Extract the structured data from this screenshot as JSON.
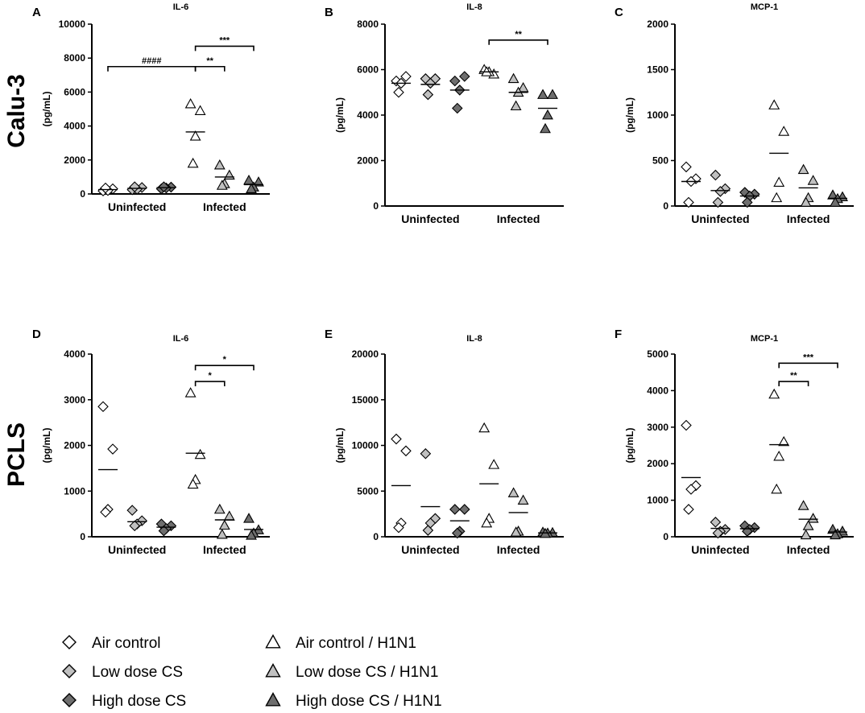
{
  "row_labels": [
    "Calu-3",
    "PCLS"
  ],
  "legend": [
    {
      "label": "Air control",
      "marker": "diamond",
      "fill": "#ffffff"
    },
    {
      "label": "Low dose CS",
      "marker": "diamond",
      "fill": "#c0c0c0"
    },
    {
      "label": "High dose CS",
      "marker": "diamond",
      "fill": "#6e6e6e"
    },
    {
      "label": "Air control / H1N1",
      "marker": "triangle",
      "fill": "#ffffff"
    },
    {
      "label": "Low dose CS / H1N1",
      "marker": "triangle",
      "fill": "#c0c0c0"
    },
    {
      "label": "High dose CS / H1N1",
      "marker": "triangle",
      "fill": "#6e6e6e"
    }
  ],
  "chart_data": [
    {
      "panel": "A",
      "type": "scatter",
      "title": "IL-6",
      "ylabel": "(pg/mL)",
      "ylim": [
        0,
        10000
      ],
      "yticks": [
        "0",
        "2000",
        "4000",
        "6000",
        "8000",
        "10000"
      ],
      "groups": [
        "Uninfected",
        "Infected"
      ],
      "series": [
        {
          "name": "Air control",
          "values": [
            180,
            300,
            200,
            350
          ],
          "mean": 260
        },
        {
          "name": "Low dose CS",
          "values": [
            250,
            380,
            280,
            420
          ],
          "mean": 330
        },
        {
          "name": "High dose CS",
          "values": [
            300,
            400,
            350,
            420
          ],
          "mean": 370
        },
        {
          "name": "Air control / H1N1",
          "values": [
            5300,
            4900,
            3400,
            1800
          ],
          "mean": 3650
        },
        {
          "name": "Low dose CS / H1N1",
          "values": [
            1700,
            1100,
            600,
            500
          ],
          "mean": 1000
        },
        {
          "name": "High dose CS / H1N1",
          "values": [
            800,
            700,
            400,
            300
          ],
          "mean": 550
        }
      ],
      "annotations": [
        {
          "from": 0,
          "to": 3,
          "y": 7500,
          "text": "####"
        },
        {
          "from": 3,
          "to": 4,
          "y": 7500,
          "text": "**"
        },
        {
          "from": 3,
          "to": 5,
          "y": 8700,
          "text": "***"
        }
      ]
    },
    {
      "panel": "B",
      "type": "scatter",
      "title": "IL-8",
      "ylabel": "(pg/mL)",
      "ylim": [
        0,
        8000
      ],
      "yticks": [
        "0",
        "2000",
        "4000",
        "6000",
        "8000"
      ],
      "groups": [
        "Uninfected",
        "Infected"
      ],
      "series": [
        {
          "name": "Air control",
          "values": [
            5500,
            5700,
            5400,
            5000
          ],
          "mean": 5400
        },
        {
          "name": "Low dose CS",
          "values": [
            5600,
            5600,
            5400,
            4900
          ],
          "mean": 5350
        },
        {
          "name": "High dose CS",
          "values": [
            5500,
            5700,
            5100,
            4300
          ],
          "mean": 5100
        },
        {
          "name": "Air control / H1N1",
          "values": [
            6000,
            5800,
            5900,
            5900
          ],
          "mean": 5900
        },
        {
          "name": "Low dose CS / H1N1",
          "values": [
            5600,
            5200,
            5000,
            4400
          ],
          "mean": 5000
        },
        {
          "name": "High dose CS / H1N1",
          "values": [
            4900,
            4900,
            4000,
            3400
          ],
          "mean": 4300
        }
      ],
      "annotations": [
        {
          "from": 3,
          "to": 5,
          "y": 7300,
          "text": "**"
        }
      ]
    },
    {
      "panel": "C",
      "type": "scatter",
      "title": "MCP-1",
      "ylabel": "(pg/mL)",
      "ylim": [
        0,
        2000
      ],
      "yticks": [
        "0",
        "500",
        "1000",
        "1500",
        "2000"
      ],
      "groups": [
        "Uninfected",
        "Infected"
      ],
      "series": [
        {
          "name": "Air control",
          "values": [
            430,
            300,
            270,
            40
          ],
          "mean": 270
        },
        {
          "name": "Low dose CS",
          "values": [
            340,
            190,
            160,
            40
          ],
          "mean": 170
        },
        {
          "name": "High dose CS",
          "values": [
            150,
            130,
            110,
            40
          ],
          "mean": 110
        },
        {
          "name": "Air control / H1N1",
          "values": [
            1110,
            820,
            260,
            90
          ],
          "mean": 580
        },
        {
          "name": "Low dose CS / H1N1",
          "values": [
            400,
            280,
            90,
            40
          ],
          "mean": 200
        },
        {
          "name": "High dose CS / H1N1",
          "values": [
            120,
            100,
            80,
            40
          ],
          "mean": 85
        }
      ],
      "annotations": []
    },
    {
      "panel": "D",
      "type": "scatter",
      "title": "IL-6",
      "ylabel": "(pg/mL)",
      "ylim": [
        0,
        4000
      ],
      "yticks": [
        "0",
        "1000",
        "2000",
        "3000",
        "4000"
      ],
      "groups": [
        "Uninfected",
        "Infected"
      ],
      "series": [
        {
          "name": "Air control",
          "values": [
            2850,
            1920,
            600,
            540
          ],
          "mean": 1470
        },
        {
          "name": "Low dose CS",
          "values": [
            580,
            350,
            280,
            240
          ],
          "mean": 330
        },
        {
          "name": "High dose CS",
          "values": [
            280,
            240,
            180,
            130
          ],
          "mean": 210
        },
        {
          "name": "Air control / H1N1",
          "values": [
            3150,
            1800,
            1250,
            1150
          ],
          "mean": 1830
        },
        {
          "name": "Low dose CS / H1N1",
          "values": [
            600,
            450,
            250,
            50
          ],
          "mean": 370
        },
        {
          "name": "High dose CS / H1N1",
          "values": [
            400,
            150,
            80,
            30
          ],
          "mean": 160
        }
      ],
      "annotations": [
        {
          "from": 3,
          "to": 4,
          "y": 3400,
          "text": "*"
        },
        {
          "from": 3,
          "to": 5,
          "y": 3750,
          "text": "*"
        }
      ]
    },
    {
      "panel": "E",
      "type": "scatter",
      "title": "IL-8",
      "ylabel": "(pg/mL)",
      "ylim": [
        0,
        20000
      ],
      "yticks": [
        "0",
        "5000",
        "10000",
        "15000",
        "20000"
      ],
      "groups": [
        "Uninfected",
        "Infected"
      ],
      "series": [
        {
          "name": "Air control",
          "values": [
            10700,
            9400,
            1500,
            1000
          ],
          "mean": 5600
        },
        {
          "name": "Low dose CS",
          "values": [
            9100,
            2000,
            1500,
            700
          ],
          "mean": 3300
        },
        {
          "name": "High dose CS",
          "values": [
            3000,
            3000,
            600,
            400
          ],
          "mean": 1750
        },
        {
          "name": "Air control / H1N1",
          "values": [
            11900,
            7900,
            2000,
            1500
          ],
          "mean": 5800
        },
        {
          "name": "Low dose CS / H1N1",
          "values": [
            4800,
            4000,
            600,
            500
          ],
          "mean": 2650
        },
        {
          "name": "High dose CS / H1N1",
          "values": [
            500,
            450,
            400,
            350
          ],
          "mean": 420
        }
      ],
      "annotations": []
    },
    {
      "panel": "F",
      "type": "scatter",
      "title": "MCP-1",
      "ylabel": "(pg/mL)",
      "ylim": [
        0,
        5000
      ],
      "yticks": [
        "0",
        "1000",
        "2000",
        "3000",
        "4000",
        "5000"
      ],
      "groups": [
        "Uninfected",
        "Infected"
      ],
      "series": [
        {
          "name": "Air control",
          "values": [
            3050,
            1400,
            1300,
            750
          ],
          "mean": 1620
        },
        {
          "name": "Low dose CS",
          "values": [
            400,
            200,
            150,
            100
          ],
          "mean": 230
        },
        {
          "name": "High dose CS",
          "values": [
            300,
            250,
            200,
            150
          ],
          "mean": 220
        },
        {
          "name": "Air control / H1N1",
          "values": [
            3900,
            2600,
            2200,
            1300
          ],
          "mean": 2520
        },
        {
          "name": "Low dose CS / H1N1",
          "values": [
            850,
            500,
            300,
            50
          ],
          "mean": 480
        },
        {
          "name": "High dose CS / H1N1",
          "values": [
            200,
            150,
            80,
            50
          ],
          "mean": 130
        }
      ],
      "annotations": [
        {
          "from": 3,
          "to": 4,
          "y": 4250,
          "text": "**"
        },
        {
          "from": 3,
          "to": 5,
          "y": 4750,
          "text": "***"
        }
      ]
    }
  ]
}
